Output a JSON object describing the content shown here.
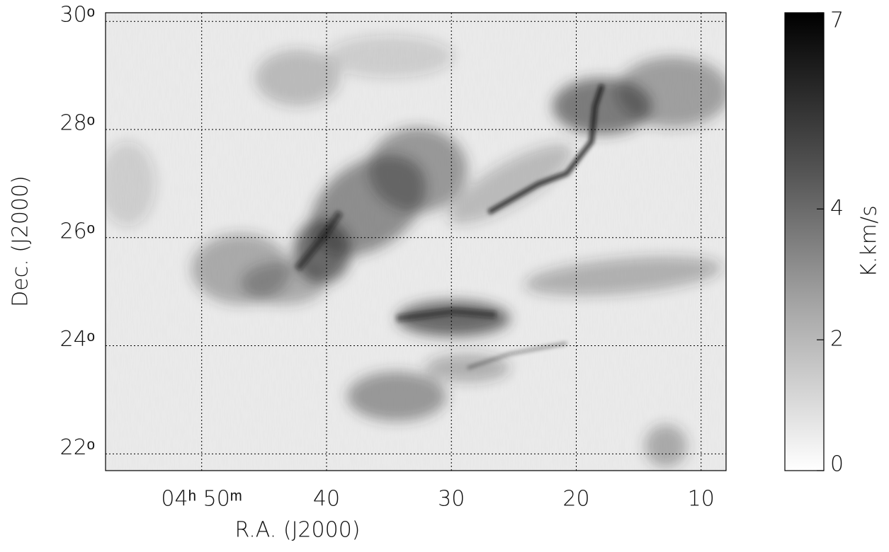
{
  "chart_data": {
    "type": "image",
    "xlabel": "R.A. (J2000)",
    "ylabel": "Dec. (J2000)",
    "xlim": [
      57.7,
      8.0
    ],
    "xticks": [
      {
        "value": 50,
        "label": "04ʰ 50ᵐ"
      },
      {
        "value": 40,
        "label": "40"
      },
      {
        "value": 30,
        "label": "30"
      },
      {
        "value": 20,
        "label": "20"
      },
      {
        "value": 10,
        "label": "10"
      }
    ],
    "ylim": [
      21.69,
      30.16
    ],
    "yticks": [
      {
        "value": 22,
        "label": "22ᵒ"
      },
      {
        "value": 24,
        "label": "24ᵒ"
      },
      {
        "value": 26,
        "label": "26ᵒ"
      },
      {
        "value": 28,
        "label": "28ᵒ"
      },
      {
        "value": 30,
        "label": "30ᵒ"
      }
    ],
    "grid": true,
    "colorbar": {
      "label": "K.km/s",
      "zlim": [
        0,
        7
      ],
      "ticks": [
        0,
        2,
        4,
        7
      ]
    }
  }
}
